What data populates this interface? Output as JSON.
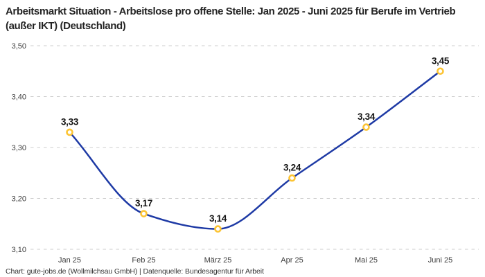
{
  "title": "Arbeitsmarkt Situation - Arbeitslose pro offene Stelle: Jan 2025 - Juni 2025 für Berufe im Vertrieb (außer IKT) (Deutschland)",
  "footer": "Chart: gute-jobs.de (Wollmilchsau GmbH) | Datenquelle: Bundesagentur für Arbeit",
  "colors": {
    "line": "#1e3aa5",
    "marker_ring": "#fcc434",
    "marker_fill": "#ffffff",
    "gridline": "#cccccc",
    "title_text": "#242424",
    "tick_text": "#3d3d3d",
    "label_text": "#141414"
  },
  "chart_data": {
    "type": "line",
    "curve": "monotone",
    "categories": [
      "Jan 25",
      "Feb 25",
      "März 25",
      "Apr 25",
      "Mai 25",
      "Juni 25"
    ],
    "values": [
      3.33,
      3.17,
      3.14,
      3.24,
      3.34,
      3.45
    ],
    "value_labels": [
      "3,33",
      "3,17",
      "3,14",
      "3,24",
      "3,34",
      "3,45"
    ],
    "y_ticks": [
      3.1,
      3.2,
      3.3,
      3.4,
      3.5
    ],
    "y_tick_labels": [
      "3,10",
      "3,20",
      "3,30",
      "3,40",
      "3,50"
    ],
    "ylim": [
      3.1,
      3.5
    ],
    "title": "Arbeitsmarkt Situation - Arbeitslose pro offene Stelle: Jan 2025 - Juni 2025 für Berufe im Vertrieb (außer IKT) (Deutschland)",
    "xlabel": "",
    "ylabel": "",
    "grid": "horizontal-dashed",
    "legend": "none",
    "marker": "open-circle"
  }
}
